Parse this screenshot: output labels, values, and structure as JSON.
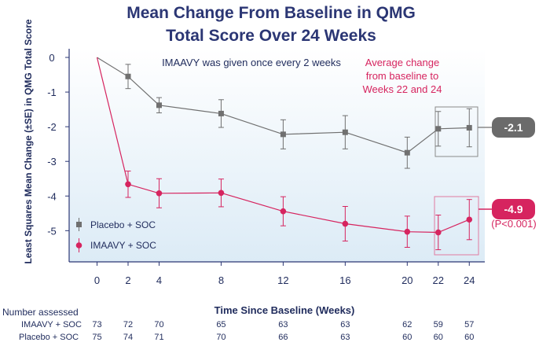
{
  "chart_data": {
    "type": "line",
    "title": [
      "Mean Change From Baseline in QMG",
      "Total Score Over 24 Weeks"
    ],
    "xlabel": "Time Since Baseline (Weeks)",
    "ylabel": "Least Squares Mean Change (±SE) in QMG Total Score",
    "x": [
      0,
      2,
      4,
      8,
      12,
      16,
      20,
      22,
      24
    ],
    "xlim": [
      -1.8,
      25
    ],
    "ylim": [
      -5.9,
      0.25
    ],
    "yticks": [
      0,
      -1,
      -2,
      -3,
      -4,
      -5
    ],
    "series": [
      {
        "name": "Placebo + SOC",
        "color": "#707070",
        "marker": "square",
        "values": [
          0,
          -0.55,
          -1.38,
          -1.62,
          -2.22,
          -2.16,
          -2.75,
          -2.06,
          -2.03
        ],
        "se": [
          0,
          0.35,
          0.22,
          0.4,
          0.42,
          0.48,
          0.45,
          0.5,
          0.55
        ]
      },
      {
        "name": "IMAAVY + SOC",
        "color": "#d6245f",
        "marker": "circle",
        "values": [
          0,
          -3.66,
          -3.92,
          -3.91,
          -4.44,
          -4.8,
          -5.03,
          -5.05,
          -4.68
        ],
        "se": [
          0,
          0.38,
          0.42,
          0.4,
          0.42,
          0.5,
          0.45,
          0.5,
          0.58
        ]
      }
    ],
    "annotations": {
      "dosing": "IMAAVY was given once every 2 weeks",
      "avg_change": [
        "Average change",
        "from baseline to",
        "Weeks 22 and 24"
      ],
      "placebo_badge": "-2.1",
      "imaavy_badge": "-4.9",
      "p_value": "(P<0.001)"
    },
    "legend": {
      "placement": "bottom-left",
      "entries": [
        "Placebo + SOC",
        "IMAAVY + SOC"
      ]
    },
    "number_assessed": {
      "heading": "Number assessed",
      "rows": [
        {
          "label": "IMAAVY + SOC",
          "values": [
            73,
            72,
            70,
            65,
            63,
            63,
            62,
            59,
            57
          ]
        },
        {
          "label": "Placebo + SOC",
          "values": [
            75,
            74,
            71,
            70,
            66,
            63,
            60,
            60,
            60
          ]
        }
      ]
    }
  },
  "colors": {
    "placebo": "#707070",
    "imaavy": "#d6245f",
    "badge_placebo": "#6b6b6b",
    "badge_imaavy": "#d6245f",
    "axis": "#2b3674"
  }
}
